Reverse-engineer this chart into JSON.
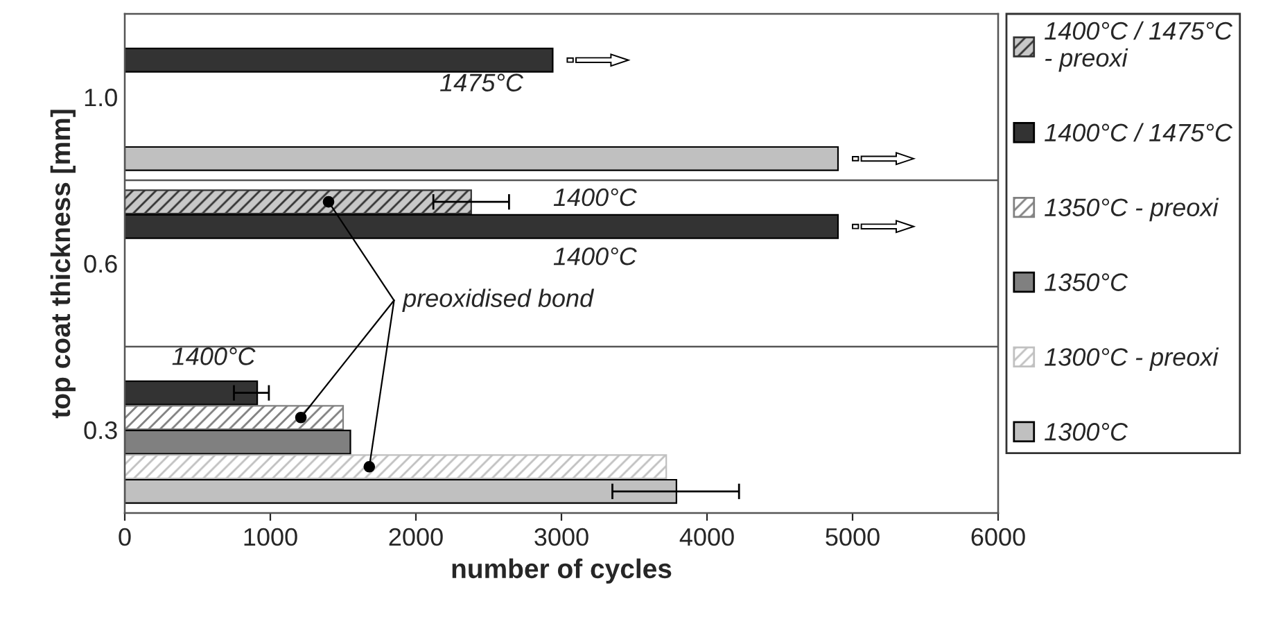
{
  "chart_data": {
    "type": "bar",
    "orientation": "horizontal",
    "xlabel": "number of cycles",
    "ylabel": "top coat thickness [mm]",
    "categories": [
      "1.0",
      "0.6",
      "0.3"
    ],
    "series": [
      {
        "name": "1400°C / 1475°C\n- preoxi",
        "color": "#333333",
        "values": [
          null,
          2380,
          null
        ],
        "errors": [
          null,
          [
            2120,
            2640
          ],
          null
        ]
      },
      {
        "name": "1400°C / 1475°C",
        "color": "#333333",
        "values": [
          2940,
          4900,
          910
        ],
        "errors": [
          null,
          null,
          [
            750,
            990
          ]
        ]
      },
      {
        "name": "1350°C - preoxi",
        "color": "#808080",
        "values": [
          null,
          null,
          1500
        ]
      },
      {
        "name": "1350°C",
        "color": "#808080",
        "values": [
          null,
          null,
          1550
        ]
      },
      {
        "name": "1300°C - preoxi",
        "color": "#c0c0c0",
        "values": [
          null,
          null,
          3720
        ]
      },
      {
        "name": "1300°C",
        "color": "#c0c0c0",
        "values": [
          4900,
          null,
          3790
        ],
        "errors": [
          null,
          null,
          [
            3350,
            4220
          ]
        ]
      }
    ],
    "xlim": [
      0,
      6000
    ],
    "xticks": [
      0,
      1000,
      2000,
      3000,
      4000,
      5000,
      6000
    ],
    "grid": "y",
    "legend": "right",
    "annotations": [
      "1475°C",
      "1400°C",
      "1400°C",
      "1400°C",
      "preoxidised bond"
    ]
  }
}
